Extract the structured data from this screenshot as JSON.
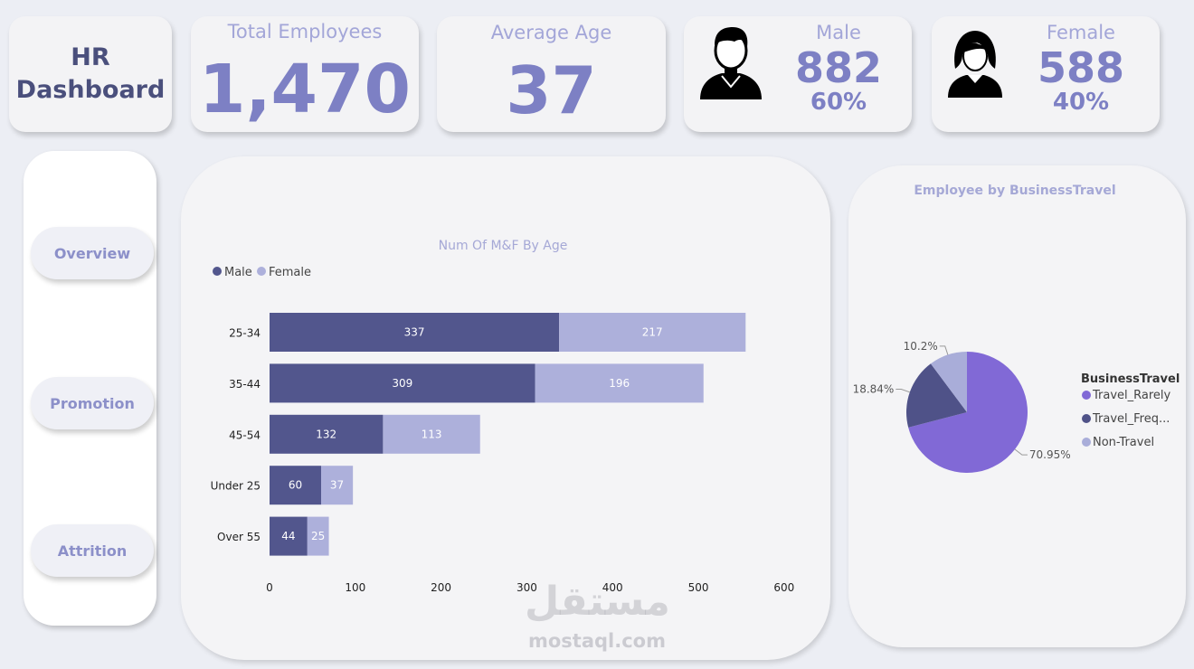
{
  "title": {
    "line1": "HR",
    "line2": "Dashboard"
  },
  "kpis": {
    "total_employees": {
      "label": "Total Employees",
      "value": "1,470"
    },
    "average_age": {
      "label": "Average Age",
      "value": "37"
    },
    "male": {
      "label": "Male",
      "value": "882",
      "pct": "60%"
    },
    "female": {
      "label": "Female",
      "value": "588",
      "pct": "40%"
    }
  },
  "nav": {
    "overview": "Overview",
    "promotion": "Promotion",
    "attrition": "Attrition"
  },
  "colors": {
    "male": "#52568d",
    "female": "#adb0db",
    "rarely": "#8169d6",
    "freq": "#4f5288",
    "non": "#a9add9"
  },
  "chart_data": [
    {
      "type": "bar",
      "orientation": "horizontal",
      "stacked": true,
      "title": "Num Of M&F By Age",
      "categories": [
        "25-34",
        "35-44",
        "45-54",
        "Under 25",
        "Over 55"
      ],
      "series": [
        {
          "name": "Male",
          "values": [
            337,
            309,
            132,
            60,
            44
          ]
        },
        {
          "name": "Female",
          "values": [
            217,
            196,
            113,
            37,
            25
          ]
        }
      ],
      "xlim": [
        0,
        600
      ],
      "ticks": [
        "0",
        "100",
        "200",
        "300",
        "400",
        "500",
        "600"
      ],
      "legend": "top-left"
    },
    {
      "type": "pie",
      "title": "Employee by BusinessTravel",
      "legend_title": "BusinessTravel",
      "categories": [
        "Travel_Rarely",
        "Travel_Frequently",
        "Non-Travel"
      ],
      "legend_labels": [
        "Travel_Rarely",
        "Travel_Freq...",
        "Non-Travel"
      ],
      "values": [
        70.95,
        18.84,
        10.2
      ],
      "labels": [
        "70.95%",
        "18.84%",
        "10.2%"
      ],
      "legend": "right"
    }
  ],
  "watermark": {
    "arabic": "مستقل",
    "text": "mostaql.com"
  }
}
